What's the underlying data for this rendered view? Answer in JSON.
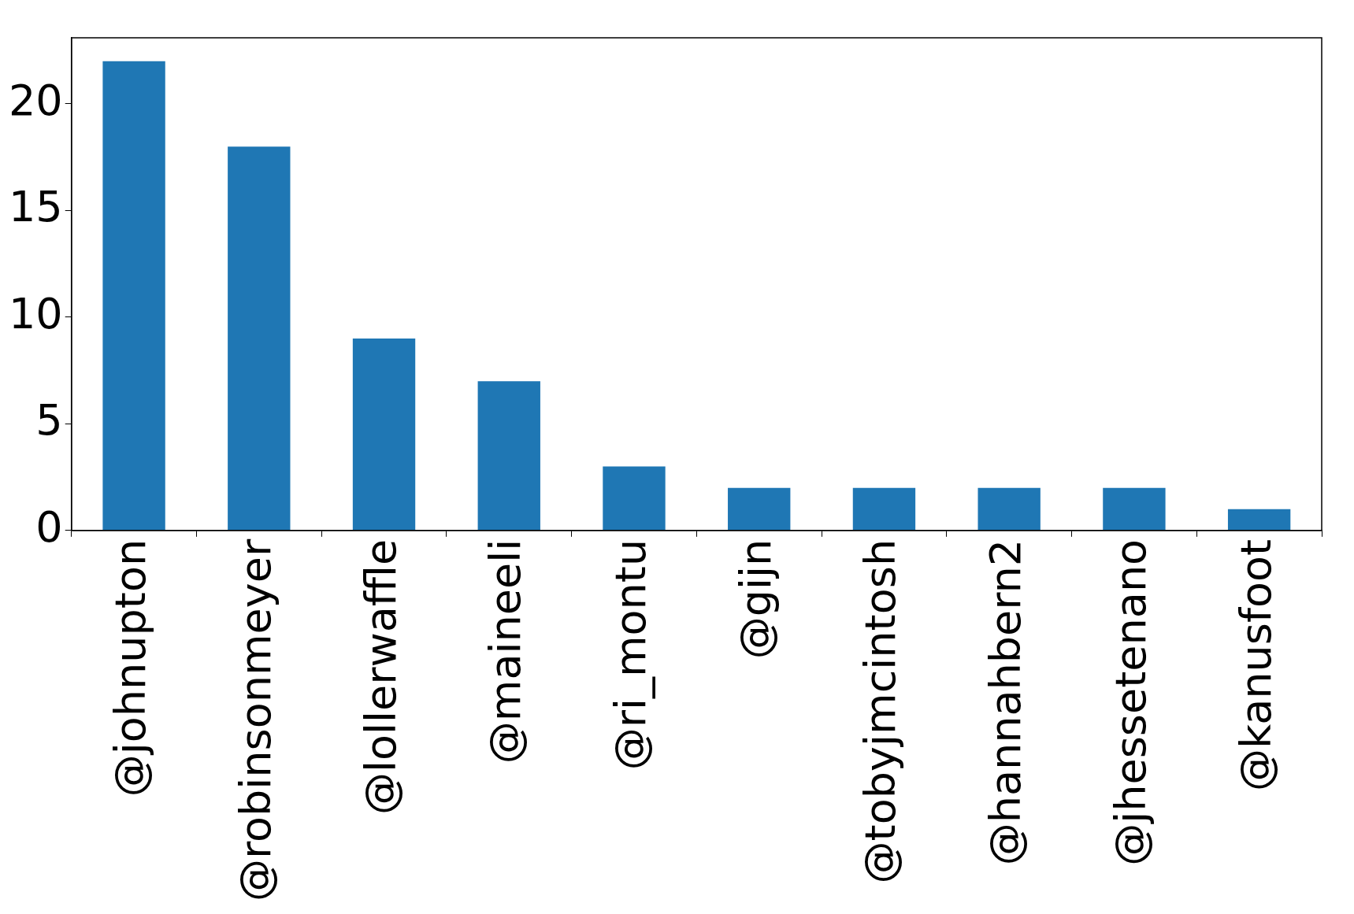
{
  "chart_data": {
    "type": "bar",
    "categories": [
      "@johnupton",
      "@robinsonmeyer",
      "@lollerwaffle",
      "@maineeli",
      "@ri_montu",
      "@gijn",
      "@tobyjmcintosh",
      "@hannahbern2",
      "@jhessetenano",
      "@kanusfoot"
    ],
    "values": [
      22,
      18,
      9,
      7,
      3,
      2,
      2,
      2,
      2,
      1
    ],
    "color": "#1f77b4",
    "ylim": [
      0,
      23.1
    ],
    "yticks": [
      0,
      5,
      10,
      15,
      20
    ],
    "grid": false,
    "legend": false
  }
}
